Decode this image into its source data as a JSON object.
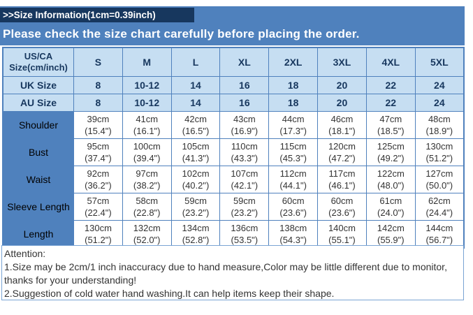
{
  "title_bar": {
    "text": ">>Size Information(1cm=0.39inch)"
  },
  "notice_bar": {
    "text": "Please check the size chart carefully before placing the order."
  },
  "size_table": {
    "corner": {
      "line1": "US/CA",
      "line2": "Size(cm/inch)"
    },
    "columns": [
      "S",
      "M",
      "L",
      "XL",
      "2XL",
      "3XL",
      "4XL",
      "5XL"
    ],
    "uk": {
      "label": "UK Size",
      "values": [
        "8",
        "10-12",
        "14",
        "16",
        "18",
        "20",
        "22",
        "24"
      ]
    },
    "au": {
      "label": "AU Size",
      "values": [
        "8",
        "10-12",
        "14",
        "16",
        "18",
        "20",
        "22",
        "24"
      ]
    },
    "rows": [
      {
        "label": "Shoulder",
        "cells": [
          {
            "cm": "39cm",
            "in": "(15.4\")"
          },
          {
            "cm": "41cm",
            "in": "(16.1\")"
          },
          {
            "cm": "42cm",
            "in": "(16.5\")"
          },
          {
            "cm": "43cm",
            "in": "(16.9\")"
          },
          {
            "cm": "44cm",
            "in": "(17.3\")"
          },
          {
            "cm": "46cm",
            "in": "(18.1\")"
          },
          {
            "cm": "47cm",
            "in": "(18.5\")"
          },
          {
            "cm": "48cm",
            "in": "(18.9\")"
          }
        ]
      },
      {
        "label": "Bust",
        "cells": [
          {
            "cm": "95cm",
            "in": "(37.4\")"
          },
          {
            "cm": "100cm",
            "in": "(39.4\")"
          },
          {
            "cm": "105cm",
            "in": "(41.3\")"
          },
          {
            "cm": "110cm",
            "in": "(43.3\")"
          },
          {
            "cm": "115cm",
            "in": "(45.3\")"
          },
          {
            "cm": "120cm",
            "in": "(47.2\")"
          },
          {
            "cm": "125cm",
            "in": "(49.2\")"
          },
          {
            "cm": "130cm",
            "in": "(51.2\")"
          }
        ]
      },
      {
        "label": "Waist",
        "cells": [
          {
            "cm": "92cm",
            "in": "(36.2\")"
          },
          {
            "cm": "97cm",
            "in": "(38.2\")"
          },
          {
            "cm": "102cm",
            "in": "(40.2\")"
          },
          {
            "cm": "107cm",
            "in": "(42.1\")"
          },
          {
            "cm": "112cm",
            "in": "(44.1\")"
          },
          {
            "cm": "117cm",
            "in": "(46.1\")"
          },
          {
            "cm": "122cm",
            "in": "(48.0\")"
          },
          {
            "cm": "127cm",
            "in": "(50.0\")"
          }
        ]
      },
      {
        "label": "Sleeve Length",
        "cells": [
          {
            "cm": "57cm",
            "in": "(22.4\")"
          },
          {
            "cm": "58cm",
            "in": "(22.8\")"
          },
          {
            "cm": "59cm",
            "in": "(23.2\")"
          },
          {
            "cm": "59cm",
            "in": "(23.2\")"
          },
          {
            "cm": "60cm",
            "in": "(23.6\")"
          },
          {
            "cm": "60cm",
            "in": "(23.6\")"
          },
          {
            "cm": "61cm",
            "in": "(24.0\")"
          },
          {
            "cm": "62cm",
            "in": "(24.4\")"
          }
        ]
      },
      {
        "label": "Length",
        "cells": [
          {
            "cm": "130cm",
            "in": "(51.2\")"
          },
          {
            "cm": "132cm",
            "in": "(52.0\")"
          },
          {
            "cm": "134cm",
            "in": "(52.8\")"
          },
          {
            "cm": "136cm",
            "in": "(53.5\")"
          },
          {
            "cm": "138cm",
            "in": "(54.3\")"
          },
          {
            "cm": "140cm",
            "in": "(55.1\")"
          },
          {
            "cm": "142cm",
            "in": "(55.9\")"
          },
          {
            "cm": "144cm",
            "in": "(56.7\")"
          }
        ]
      }
    ]
  },
  "attention": {
    "heading": "Attention:",
    "line1": "1.Size may be 2cm/1 inch inaccuracy due to hand measure,Color may be little different due to monitor,",
    "line2": "thanks for your understanding!",
    "line3": "2.Suggestion of cold water hand washing.It can help items keep their shape."
  },
  "colors": {
    "dark_navy": "#17375E",
    "medium_blue": "#4F81BD",
    "light_blue": "#C6DEF2",
    "border_blue": "#4F81BD",
    "attention_border": "#7AA4D4",
    "text_dark": "#333333"
  }
}
